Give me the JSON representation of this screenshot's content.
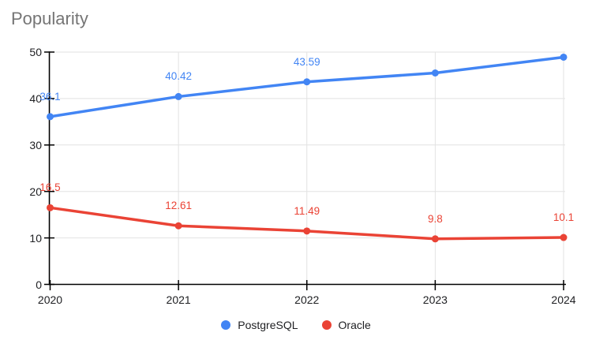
{
  "chart_data": {
    "type": "line",
    "title": "Popularity",
    "title_color": "#757575",
    "xlabel": "",
    "ylabel": "",
    "categories": [
      "2020",
      "2021",
      "2022",
      "2023",
      "2024"
    ],
    "series": [
      {
        "name": "PostgreSQL",
        "color": "#4285F4",
        "values": [
          36.1,
          40.42,
          43.59,
          45.5,
          48.9
        ],
        "point_labels": [
          "36.1",
          "40.42",
          "43.59",
          "",
          ""
        ]
      },
      {
        "name": "Oracle",
        "color": "#EA4335",
        "values": [
          16.5,
          12.61,
          11.49,
          9.8,
          10.1
        ],
        "point_labels": [
          "16.5",
          "12.61",
          "11.49",
          "9.8",
          "10.1"
        ]
      }
    ],
    "ylim": [
      0,
      50
    ],
    "yticks": [
      0,
      10,
      20,
      30,
      40,
      50
    ],
    "grid": true,
    "grid_color": "#E2E2E2",
    "axis_color": "#000000",
    "legend_position": "bottom"
  }
}
